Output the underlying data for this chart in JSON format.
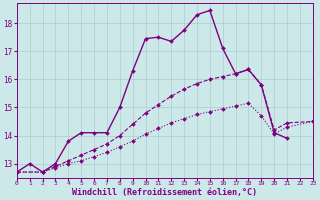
{
  "background_color": "#cce8e8",
  "grid_color": "#aacece",
  "line_color": "#800080",
  "xlabel": "Windchill (Refroidissement éolien,°C)",
  "xlabel_fontsize": 6,
  "yticks": [
    13,
    14,
    15,
    16,
    17,
    18
  ],
  "xticks": [
    0,
    1,
    2,
    3,
    4,
    5,
    6,
    7,
    8,
    9,
    10,
    11,
    12,
    13,
    14,
    15,
    16,
    17,
    18,
    19,
    20,
    21,
    22,
    23
  ],
  "xlim": [
    0,
    23
  ],
  "ylim": [
    12.5,
    18.7
  ],
  "series": [
    {
      "x": [
        0,
        1,
        2,
        3,
        4,
        5,
        6,
        7,
        8,
        9,
        10,
        11,
        12,
        13,
        14,
        15,
        16,
        17,
        18,
        19,
        20,
        21
      ],
      "y": [
        12.7,
        13.0,
        12.7,
        13.0,
        13.8,
        14.1,
        14.1,
        14.1,
        15.0,
        16.3,
        17.45,
        17.5,
        17.35,
        17.75,
        18.3,
        18.45,
        17.1,
        16.2,
        16.35,
        15.8,
        14.1,
        13.9
      ],
      "style": "-",
      "marker": "D",
      "markersize": 2,
      "linewidth": 1.0
    },
    {
      "x": [
        0,
        2,
        3,
        4,
        5,
        6,
        7,
        8,
        9,
        10,
        11,
        12,
        13,
        14,
        15,
        16,
        17,
        18,
        19,
        20,
        21,
        23
      ],
      "y": [
        12.7,
        12.7,
        12.9,
        13.1,
        13.3,
        13.5,
        13.7,
        14.0,
        14.4,
        14.8,
        15.1,
        15.4,
        15.65,
        15.85,
        16.0,
        16.1,
        16.2,
        16.35,
        15.8,
        14.2,
        14.45,
        14.5
      ],
      "style": "--",
      "marker": "D",
      "markersize": 2,
      "linewidth": 0.8
    },
    {
      "x": [
        0,
        2,
        3,
        4,
        5,
        6,
        7,
        8,
        9,
        10,
        11,
        12,
        13,
        14,
        15,
        16,
        17,
        18,
        19,
        20,
        21,
        23
      ],
      "y": [
        12.7,
        12.7,
        12.85,
        13.0,
        13.1,
        13.25,
        13.4,
        13.6,
        13.8,
        14.05,
        14.25,
        14.45,
        14.6,
        14.75,
        14.85,
        14.95,
        15.05,
        15.15,
        14.7,
        14.05,
        14.3,
        14.5
      ],
      "style": ":",
      "marker": "D",
      "markersize": 2,
      "linewidth": 0.8
    }
  ]
}
